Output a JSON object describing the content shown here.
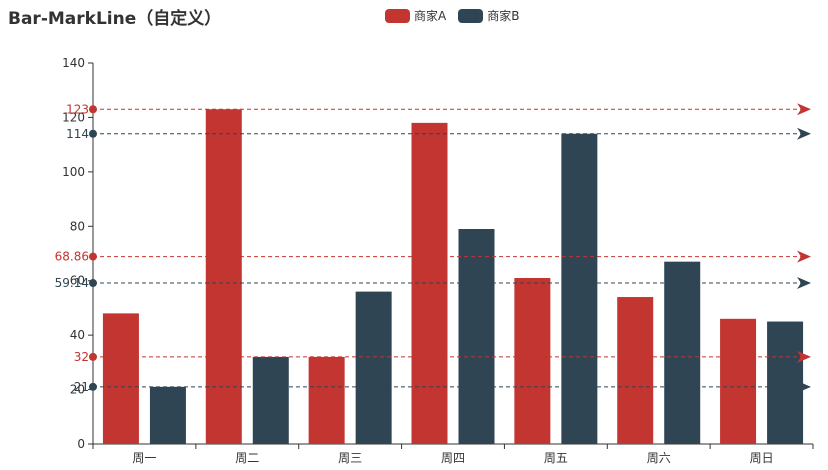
{
  "chart_data": {
    "type": "bar",
    "title": "Bar-MarkLine（自定义）",
    "categories": [
      "周一",
      "周二",
      "周三",
      "周四",
      "周五",
      "周六",
      "周日"
    ],
    "ylim": [
      0,
      140
    ],
    "yticks": [
      0,
      20,
      40,
      60,
      80,
      100,
      120,
      140
    ],
    "series": [
      {
        "name": "商家A",
        "color": "#c23531",
        "values": [
          48,
          123,
          32,
          118,
          61,
          54,
          46
        ],
        "markLines": [
          {
            "label": "123",
            "value": 123
          },
          {
            "label": "68.86",
            "value": 68.86
          },
          {
            "label": "32",
            "value": 32
          }
        ]
      },
      {
        "name": "商家B",
        "color": "#2f4554",
        "values": [
          21,
          32,
          56,
          79,
          114,
          67,
          45
        ],
        "markLines": [
          {
            "label": "114",
            "value": 114
          },
          {
            "label": "59.14",
            "value": 59.14
          },
          {
            "label": "21",
            "value": 21
          }
        ]
      }
    ]
  }
}
